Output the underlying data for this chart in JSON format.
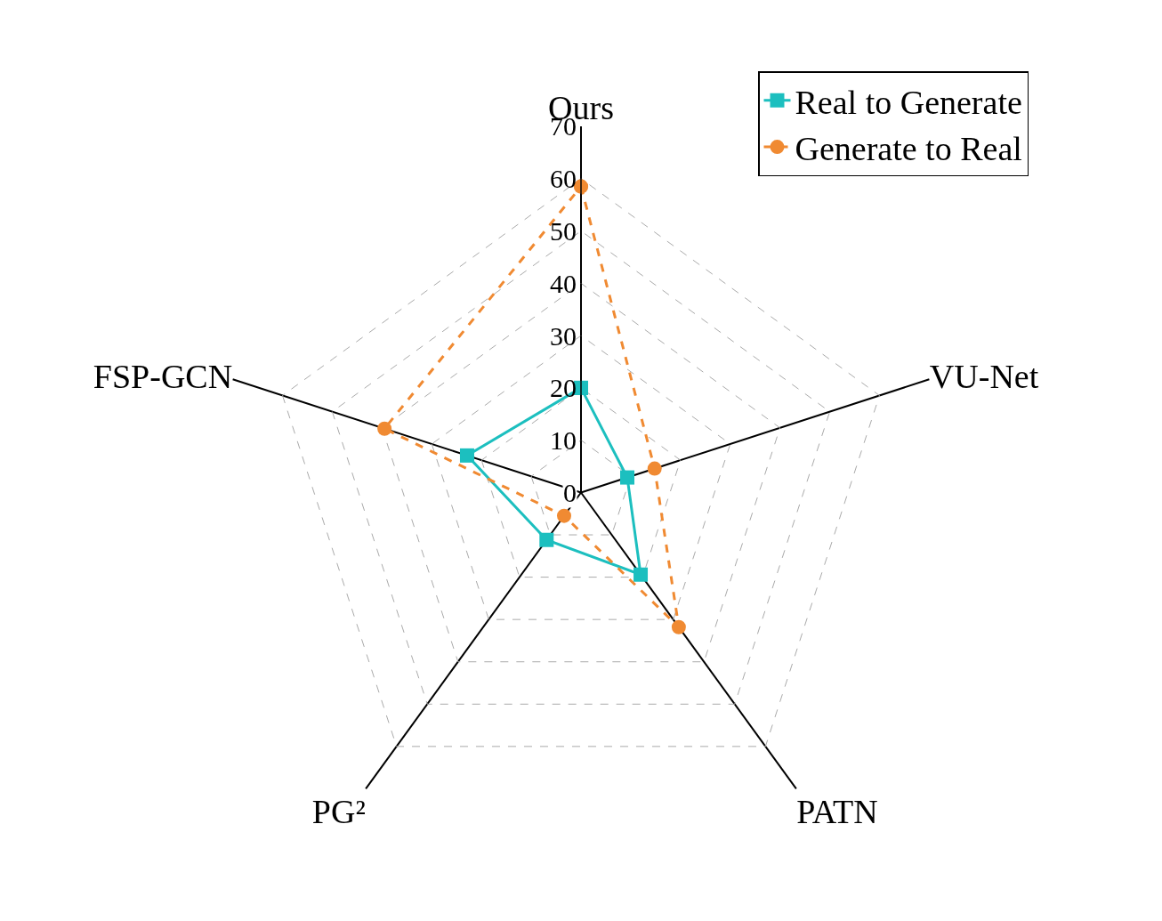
{
  "chart_data": {
    "type": "radar",
    "categories": [
      "Ours",
      "VU-Net",
      "PATN",
      "PG²",
      "FSP-GCN"
    ],
    "series": [
      {
        "name": "Real to Generate",
        "color": "#1cbfbf",
        "marker": "square",
        "line_style": "solid",
        "values": [
          20,
          9.3,
          19.4,
          11.2,
          22.9
        ]
      },
      {
        "name": "Generate to Real",
        "color": "#f08a32",
        "marker": "circle",
        "line_style": "dashed",
        "values": [
          58.5,
          14.8,
          31.8,
          5.5,
          39.5
        ]
      }
    ],
    "ylim": [
      0,
      70
    ],
    "yticks": [
      0,
      10,
      20,
      30,
      40,
      50,
      60,
      70
    ],
    "grid": true,
    "legend": "top right"
  }
}
